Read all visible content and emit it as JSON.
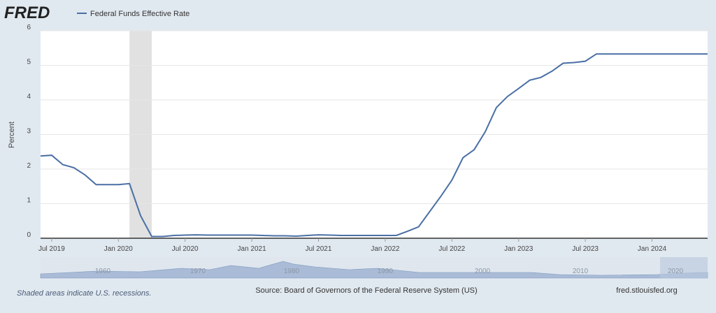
{
  "chart_data": {
    "type": "line",
    "logo": "FRED",
    "y_label": "Percent",
    "x": [
      "2019-06",
      "2019-07",
      "2019-08",
      "2019-09",
      "2019-10",
      "2019-11",
      "2019-12",
      "2020-01",
      "2020-02",
      "2020-03",
      "2020-04",
      "2020-05",
      "2020-06",
      "2020-07",
      "2020-08",
      "2020-09",
      "2020-10",
      "2020-11",
      "2020-12",
      "2021-01",
      "2021-02",
      "2021-03",
      "2021-04",
      "2021-05",
      "2021-06",
      "2021-07",
      "2021-08",
      "2021-09",
      "2021-10",
      "2021-11",
      "2021-12",
      "2022-01",
      "2022-02",
      "2022-03",
      "2022-04",
      "2022-05",
      "2022-06",
      "2022-07",
      "2022-08",
      "2022-09",
      "2022-10",
      "2022-11",
      "2022-12",
      "2023-01",
      "2023-02",
      "2023-03",
      "2023-04",
      "2023-05",
      "2023-06",
      "2023-07",
      "2023-08",
      "2023-09",
      "2023-10",
      "2023-11",
      "2023-12",
      "2024-01",
      "2024-02",
      "2024-03",
      "2024-04",
      "2024-05",
      "2024-06"
    ],
    "series": [
      {
        "name": "Federal Funds Effective Rate",
        "color": "#4a6fa5",
        "values": [
          2.38,
          2.4,
          2.13,
          2.04,
          1.83,
          1.55,
          1.55,
          1.55,
          1.58,
          0.65,
          0.05,
          0.05,
          0.08,
          0.09,
          0.1,
          0.09,
          0.09,
          0.09,
          0.09,
          0.09,
          0.08,
          0.07,
          0.07,
          0.06,
          0.08,
          0.1,
          0.09,
          0.08,
          0.08,
          0.08,
          0.08,
          0.08,
          0.08,
          0.2,
          0.33,
          0.77,
          1.21,
          1.68,
          2.33,
          2.56,
          3.08,
          3.78,
          4.1,
          4.33,
          4.57,
          4.65,
          4.83,
          5.06,
          5.08,
          5.12,
          5.33,
          5.33,
          5.33,
          5.33,
          5.33,
          5.33,
          5.33,
          5.33,
          5.33,
          5.33,
          5.33
        ]
      }
    ],
    "recessions": [
      {
        "start": "2020-02",
        "end": "2020-04"
      }
    ],
    "xlim": [
      "2019-06",
      "2024-06"
    ],
    "xticks": [
      {
        "value": "2019-07",
        "label": "Jul 2019"
      },
      {
        "value": "2020-01",
        "label": "Jan 2020"
      },
      {
        "value": "2020-07",
        "label": "Jul 2020"
      },
      {
        "value": "2021-01",
        "label": "Jan 2021"
      },
      {
        "value": "2021-07",
        "label": "Jul 2021"
      },
      {
        "value": "2022-01",
        "label": "Jan 2022"
      },
      {
        "value": "2022-07",
        "label": "Jul 2022"
      },
      {
        "value": "2023-01",
        "label": "Jan 2023"
      },
      {
        "value": "2023-07",
        "label": "Jul 2023"
      },
      {
        "value": "2024-01",
        "label": "Jan 2024"
      }
    ],
    "ylim": [
      0,
      6
    ],
    "yticks": [
      0,
      1,
      2,
      3,
      4,
      5,
      6
    ],
    "grid": true,
    "navigator_labels": [
      "1960",
      "1970",
      "1980",
      "1990",
      "2000",
      "2010",
      "2020"
    ],
    "footer": {
      "note": "Shaded areas indicate U.S. recessions.",
      "source": "Source: Board of Governors of the Federal Reserve System (US)",
      "site": "fred.stlouisfed.org"
    }
  }
}
